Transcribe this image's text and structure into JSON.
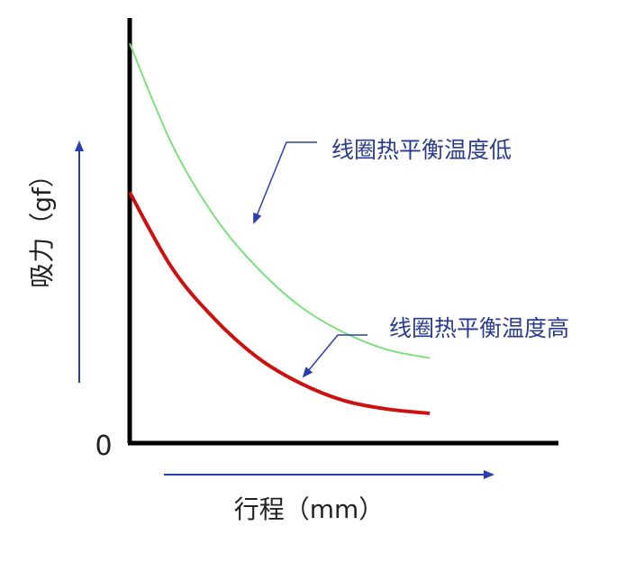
{
  "chart_data": {
    "type": "line",
    "xlabel": "行程（mm）",
    "ylabel": "吸力（gf）",
    "origin_label": "0",
    "xlim": [
      0,
      100
    ],
    "ylim": [
      0,
      100
    ],
    "series": [
      {
        "name": "线圈热平衡温度低",
        "color": "#7de07d",
        "x": [
          0,
          10,
          20,
          30,
          40,
          50,
          60,
          70
        ],
        "y": [
          94,
          70,
          53,
          41,
          32,
          26,
          22,
          20
        ]
      },
      {
        "name": "线圈热平衡温度高",
        "color": "#cc1111",
        "x": [
          0,
          10,
          20,
          30,
          40,
          50,
          60,
          70
        ],
        "y": [
          59,
          41,
          29,
          20,
          14,
          10,
          8,
          7
        ]
      }
    ],
    "colors": {
      "axis": "#000000",
      "arrow": "#2b3fb0",
      "label_text": "#2b3b8f"
    }
  }
}
